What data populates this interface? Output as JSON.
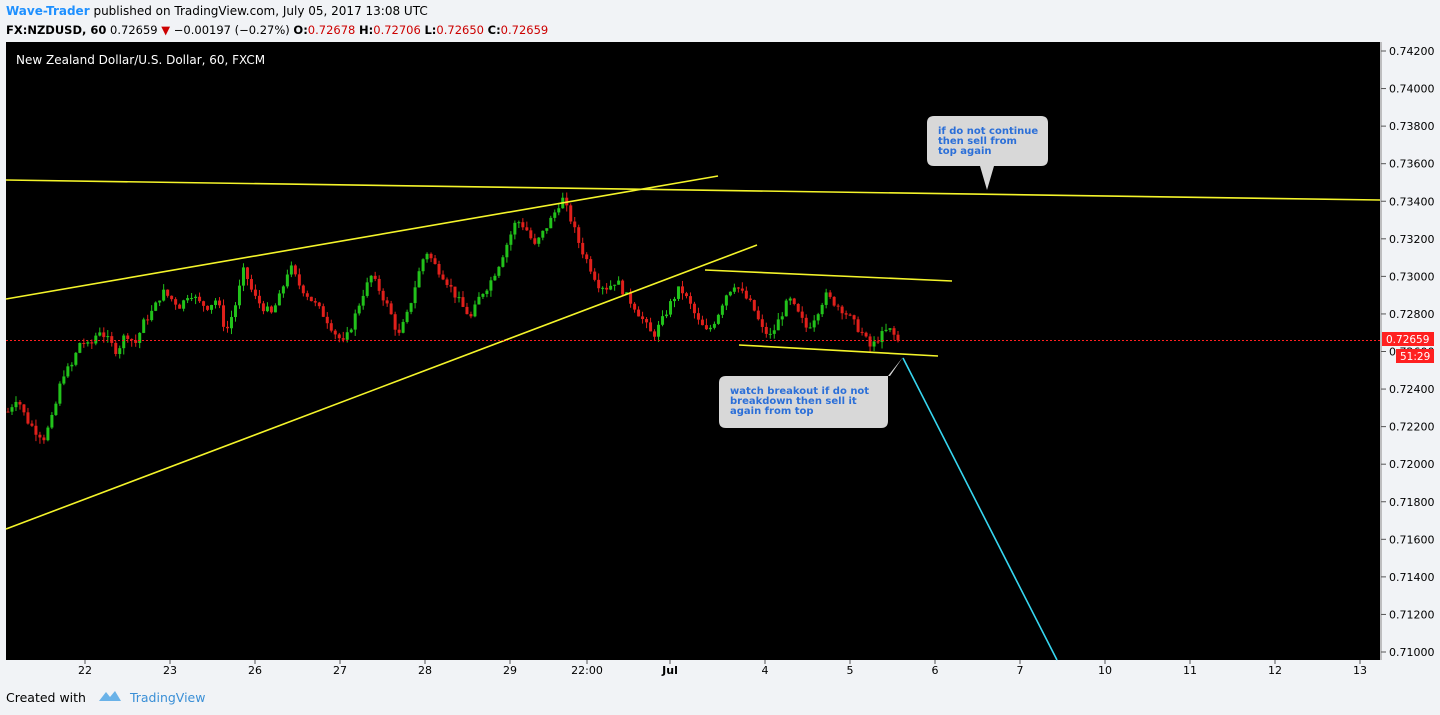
{
  "header": {
    "author": "Wave-Trader",
    "published_text": "published on TradingView.com, July 05, 2017 13:08 UTC",
    "symbol": "FX:NZDUSD, 60",
    "last": "0.72659",
    "change": "−0.00197 (−0.27%)",
    "o_label": "O:",
    "o_value": "0.72678",
    "h_label": "H:",
    "h_value": "0.72706",
    "l_label": "L:",
    "l_value": "0.72650",
    "c_label": "C:",
    "c_value": "0.72659"
  },
  "chart_title": "New Zealand Dollar/U.S. Dollar, 60, FXCM",
  "footer": {
    "created": "Created with",
    "brand": "TradingView"
  },
  "colors": {
    "background": "#000000",
    "up": "#22c21b",
    "down": "#e0201b",
    "trendline": "#f4f42a",
    "projection": "#37d6f0",
    "price_line": "#ff2020",
    "price_tag": "#ff2020",
    "callout": "#d8d8d8"
  },
  "chart_data": {
    "type": "candlestick",
    "title": "New Zealand Dollar/U.S. Dollar, 60, FXCM",
    "ylim": [
      0.71,
      0.7422
    ],
    "yticks": [
      "0.74200",
      "0.74000",
      "0.73800",
      "0.73600",
      "0.73400",
      "0.73200",
      "0.73000",
      "0.72800",
      "0.72600",
      "0.72400",
      "0.72200",
      "0.72000",
      "0.71800",
      "0.71600",
      "0.71400",
      "0.71200",
      "0.71000"
    ],
    "xticks": [
      "22",
      "23",
      "26",
      "27",
      "28",
      "29",
      "22:00",
      "Jul",
      "4",
      "5",
      "6",
      "7",
      "10",
      "11",
      "12",
      "13"
    ],
    "last_price": "0.72659",
    "countdown": "51:29",
    "price_path": [
      0.7228,
      0.7236,
      0.7224,
      0.7218,
      0.7214,
      0.7226,
      0.7248,
      0.7252,
      0.7266,
      0.7262,
      0.7272,
      0.7266,
      0.726,
      0.727,
      0.7264,
      0.7276,
      0.7282,
      0.7292,
      0.7288,
      0.7284,
      0.7292,
      0.7286,
      0.7284,
      0.7288,
      0.727,
      0.7284,
      0.7304,
      0.729,
      0.7284,
      0.728,
      0.729,
      0.7306,
      0.7296,
      0.729,
      0.7284,
      0.7278,
      0.727,
      0.7264,
      0.7276,
      0.729,
      0.73,
      0.7292,
      0.7282,
      0.7268,
      0.728,
      0.7298,
      0.7314,
      0.7306,
      0.73,
      0.7292,
      0.7284,
      0.7278,
      0.729,
      0.7296,
      0.7306,
      0.7318,
      0.733,
      0.7326,
      0.7316,
      0.7324,
      0.7332,
      0.7342,
      0.733,
      0.7316,
      0.7306,
      0.7296,
      0.7294,
      0.7298,
      0.729,
      0.7284,
      0.7276,
      0.7268,
      0.7276,
      0.7286,
      0.7294,
      0.7286,
      0.7276,
      0.727,
      0.7278,
      0.729,
      0.7296,
      0.729,
      0.7284,
      0.7272,
      0.7268,
      0.7278,
      0.7288,
      0.728,
      0.7272,
      0.728,
      0.729,
      0.7286,
      0.7282,
      0.7276,
      0.727,
      0.7262,
      0.7268,
      0.7272,
      0.72659
    ],
    "annotations": [
      {
        "text_lines": [
          "if do not continue",
          "then sell from",
          "top again"
        ]
      },
      {
        "text_lines": [
          "watch breakout if do not",
          "breakdown then sell it",
          "again from top"
        ]
      }
    ]
  }
}
